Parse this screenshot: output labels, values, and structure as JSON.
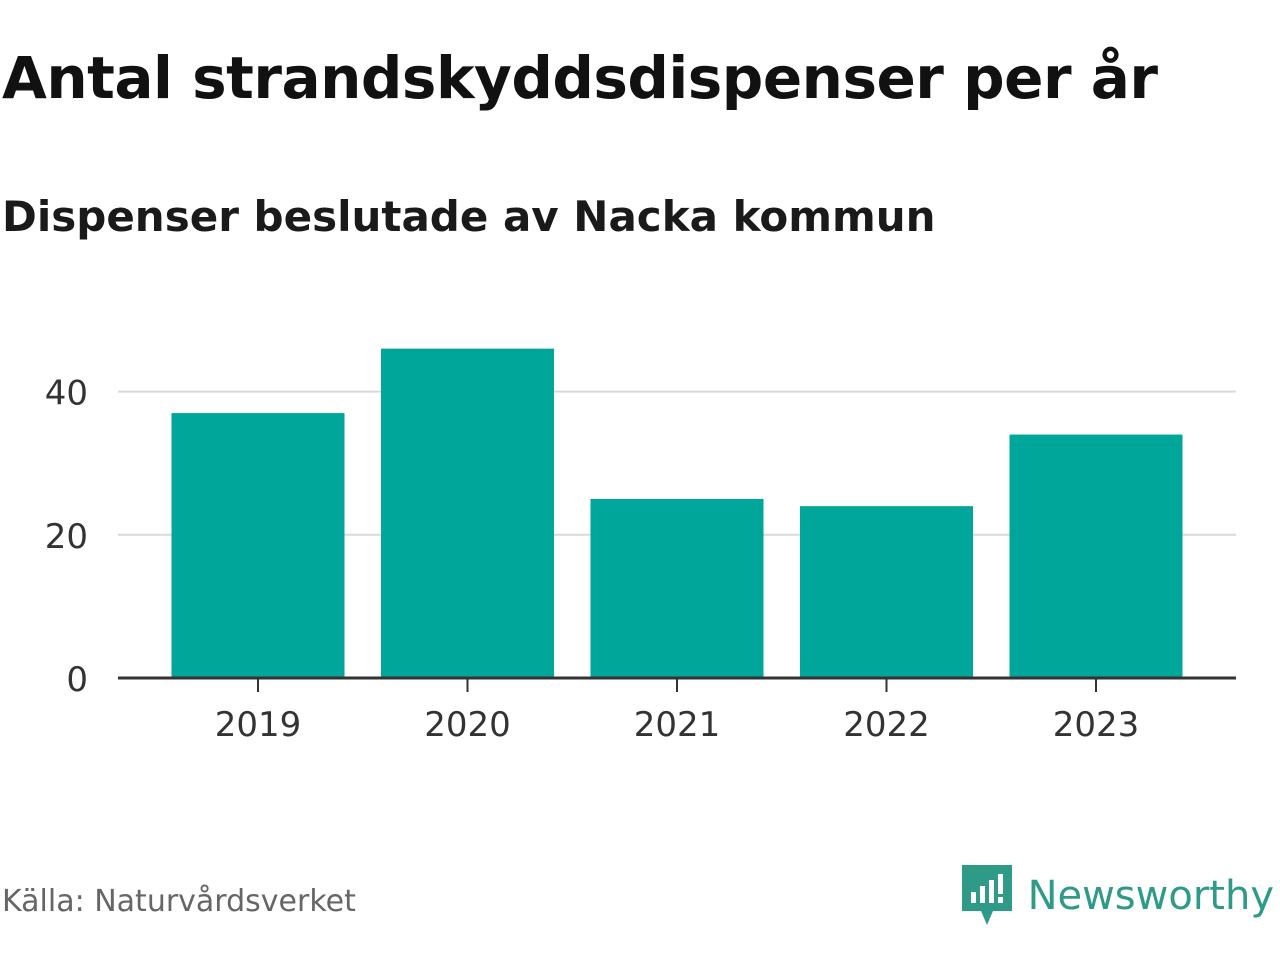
{
  "title": "Antal strandskyddsdispenser per år",
  "subtitle": "Dispenser beslutade av Nacka kommun",
  "source": "Källa: Naturvårdsverket",
  "brand": {
    "name": "Newsworthy",
    "icon": "newsworthy-logo-icon",
    "color": "#2f9a88"
  },
  "colors": {
    "bar": "#00a69a",
    "grid": "#d9d9d9",
    "axis": "#333333",
    "tick_text": "#333333"
  },
  "chart_data": {
    "type": "bar",
    "categories": [
      "2019",
      "2020",
      "2021",
      "2022",
      "2023"
    ],
    "values": [
      37,
      46,
      25,
      24,
      34
    ],
    "yticks": [
      0,
      20,
      40
    ],
    "ylim": [
      0,
      50
    ],
    "xlabel": "",
    "ylabel": "",
    "grid": true,
    "legend": "none"
  }
}
